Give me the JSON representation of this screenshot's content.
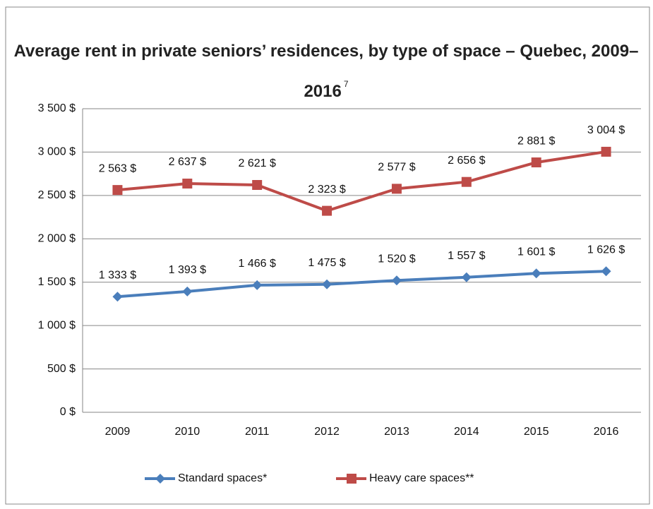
{
  "chart_data": {
    "type": "line",
    "title": "Average rent in private seniors’ residences, by type of space – Quebec, 2009–2016",
    "title_superscript": "7",
    "categories": [
      "2009",
      "2010",
      "2011",
      "2012",
      "2013",
      "2014",
      "2015",
      "2016"
    ],
    "series": [
      {
        "name": "Standard spaces*",
        "color": "#4a7ebb",
        "marker": "diamond",
        "values": [
          1333,
          1393,
          1466,
          1475,
          1520,
          1557,
          1601,
          1626
        ],
        "value_labels": [
          "1 333 $",
          "1 393 $",
          "1 466 $",
          "1 475 $",
          "1 520 $",
          "1 557 $",
          "1 601 $",
          "1 626 $"
        ]
      },
      {
        "name": "Heavy care spaces**",
        "color": "#be4b48",
        "marker": "square",
        "values": [
          2563,
          2637,
          2621,
          2323,
          2577,
          2656,
          2881,
          3004
        ],
        "value_labels": [
          "2 563 $",
          "2 637 $",
          "2 621 $",
          "2 323 $",
          "2 577 $",
          "2 656 $",
          "2 881 $",
          "3 004 $"
        ]
      }
    ],
    "ylim": [
      0,
      3500
    ],
    "yticks": [
      {
        "value": 0,
        "label": "0 $"
      },
      {
        "value": 500,
        "label": "500 $"
      },
      {
        "value": 1000,
        "label": "1 000 $"
      },
      {
        "value": 1500,
        "label": "1 500 $"
      },
      {
        "value": 2000,
        "label": "2 000 $"
      },
      {
        "value": 2500,
        "label": "2 500 $"
      },
      {
        "value": 3000,
        "label": "3 000 $"
      },
      {
        "value": 3500,
        "label": "3 500 $"
      }
    ],
    "grid": true,
    "legend": "bottom"
  }
}
